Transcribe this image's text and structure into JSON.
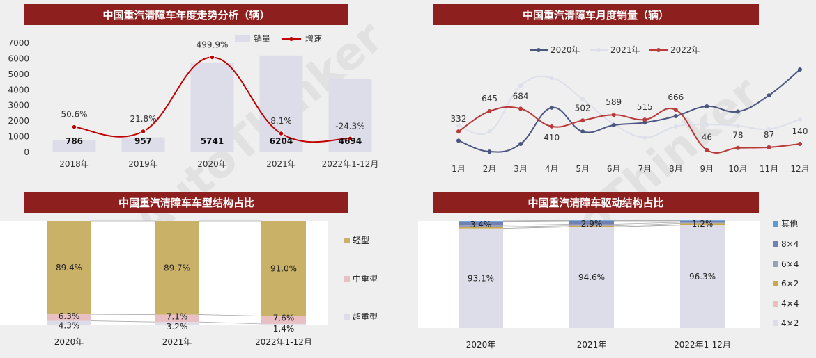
{
  "colors": {
    "title_bg": "#8e1f1f",
    "bar_gray": "#dcdde8",
    "growth_line": "#c00000",
    "line_2020": "#4a5580",
    "line_2021": "#dde0ea",
    "line_2022": "#b83a3a",
    "light": "#c9b268",
    "medium": "#e8c0c4",
    "heavy": "#dcdde8",
    "other": "#5b9bd5",
    "d8x4": "#7080b0",
    "d6x4": "#9aa0bc",
    "d6x2": "#c9a84a",
    "d4x4": "#e8c0c4",
    "d4x2": "#dcdde8"
  },
  "watermark": {
    "text": "AutoThinker",
    "cn1": "智",
    "cn2": "库",
    "cn3": "汽"
  },
  "chart_data": [
    {
      "type": "bar",
      "title": "中国重汽清障车年度走势分析（辆）",
      "categories": [
        "2018年",
        "2019年",
        "2020年",
        "2021年",
        "2022年1-12月"
      ],
      "series": [
        {
          "name": "销量",
          "values": [
            786,
            957,
            5741,
            6204,
            4694
          ],
          "value_labels": [
            "786",
            "957",
            "5741",
            "6204",
            "4694"
          ]
        },
        {
          "name": "增速",
          "values": [
            50.6,
            21.8,
            499.9,
            8.1,
            -24.3
          ],
          "value_labels": [
            "50.6%",
            "21.8%",
            "499.9%",
            "8.1%",
            "-24.3%"
          ]
        }
      ],
      "ylim": [
        0,
        7000
      ],
      "yticks": [
        "0",
        "1000",
        "2000",
        "3000",
        "4000",
        "5000",
        "6000",
        "7000"
      ],
      "legend": "top"
    },
    {
      "type": "line",
      "title": "中国重汽清障车月度销量（辆）",
      "categories": [
        "1月",
        "2月",
        "3月",
        "4月",
        "5月",
        "6月",
        "7月",
        "8月",
        "9月",
        "10月",
        "11月",
        "12月"
      ],
      "series": [
        {
          "name": "2020年",
          "values": [
            190,
            20,
            140,
            700,
            330,
            430,
            470,
            570,
            720,
            640,
            890,
            1290
          ]
        },
        {
          "name": "2021年",
          "values": [
            420,
            330,
            1040,
            1160,
            830,
            450,
            240,
            410,
            440,
            420,
            370,
            520
          ]
        },
        {
          "name": "2022年",
          "values": [
            332,
            645,
            684,
            410,
            502,
            589,
            515,
            666,
            46,
            78,
            87,
            140
          ]
        }
      ],
      "labels_2022": [
        "332",
        "645",
        "684",
        "410",
        "502",
        "589",
        "515",
        "666",
        "46",
        "78",
        "87",
        "140"
      ],
      "legend": "top"
    },
    {
      "type": "bar",
      "title": "中国重汽清障车车型结构占比",
      "categories": [
        "2020年",
        "2021年",
        "2022年1-12月"
      ],
      "series": [
        {
          "name": "轻型",
          "values": [
            89.4,
            89.7,
            91.0
          ],
          "labels": [
            "89.4%",
            "89.7%",
            "91.0%"
          ]
        },
        {
          "name": "中重型",
          "values": [
            6.3,
            7.1,
            7.6
          ],
          "labels": [
            "6.3%",
            "7.1%",
            "7.6%"
          ]
        },
        {
          "name": "超重型",
          "values": [
            4.3,
            3.2,
            1.4
          ],
          "labels": [
            "4.3%",
            "3.2%",
            "1.4%"
          ]
        }
      ],
      "stacked": true,
      "legend": "right"
    },
    {
      "type": "bar",
      "title": "中国重汽清障车驱动结构占比",
      "categories": [
        "2020年",
        "2021年",
        "2022年1-12月"
      ],
      "series": [
        {
          "name": "其他",
          "values": [
            0.5,
            0.5,
            0.5
          ]
        },
        {
          "name": "8×4",
          "values": [
            3.4,
            2.9,
            1.2
          ],
          "labels": [
            "3.4%",
            "2.9%",
            "1.2%"
          ]
        },
        {
          "name": "6×4",
          "values": [
            1.5,
            1.5,
            1.0
          ]
        },
        {
          "name": "6×2",
          "values": [
            1.5,
            1.0,
            1.5
          ]
        },
        {
          "name": "4×4",
          "values": [
            0,
            0,
            0
          ]
        },
        {
          "name": "4×2",
          "values": [
            93.1,
            94.6,
            96.3
          ],
          "labels": [
            "93.1%",
            "94.6%",
            "96.3%"
          ]
        }
      ],
      "stacked": true,
      "legend": "right"
    }
  ]
}
